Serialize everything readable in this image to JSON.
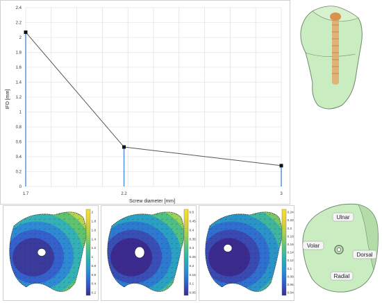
{
  "chart_data": {
    "type": "line",
    "categories": [
      "1.7",
      "2.2",
      "3"
    ],
    "x": [
      1.7,
      2.2,
      3
    ],
    "values": [
      2.07,
      0.53,
      0.28
    ],
    "xlabel": "Screw diameter [mm]",
    "ylabel": "IFD [mm]",
    "ylim": [
      0,
      2.4
    ],
    "yticks": [
      "0",
      "0.2",
      "0.4",
      "0.6",
      "0.8",
      "1",
      "1.2",
      "1.4",
      "1.6",
      "1.8",
      "2",
      "2.2",
      "2.4"
    ],
    "grid": true,
    "line_color": "#555555",
    "drop_line_color": "#4a8fd6",
    "marker_color": "#111111"
  },
  "heatmaps": [
    {
      "colorbar_ticks": [
        "2",
        "1.8",
        "1.6",
        "1.4",
        "1.2",
        "1",
        "0.8",
        "0.6",
        "0.4",
        "0.2"
      ]
    },
    {
      "colorbar_ticks": [
        "0.5",
        "0.45",
        "0.4",
        "0.35",
        "0.3",
        "0.25",
        "0.2",
        "0.15",
        "0.1",
        "0.05"
      ]
    },
    {
      "colorbar_ticks": [
        "0.24",
        "0.22",
        "0.2",
        "0.18",
        "0.16",
        "0.14",
        "0.12",
        "0.1",
        "0.08",
        "0.06",
        "0.04"
      ]
    }
  ],
  "anatomy_labels": {
    "ulnar": "Ulnar",
    "volar": "Volar",
    "dorsal": "Dorsal",
    "radial": "Radial"
  },
  "colors": {
    "bone": "#c9ecc0",
    "bone_edge": "#6f8a6c",
    "screw": "#e3a96a",
    "grid": "#d9d9d9"
  }
}
